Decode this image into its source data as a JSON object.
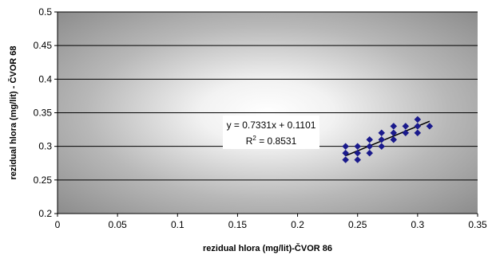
{
  "chart_data": {
    "type": "scatter",
    "title": "",
    "xlabel": "rezidual hlora (mg/lit)-ČVOR 86",
    "ylabel": "rezidual hlora (mg/lit) - ČVOR 68",
    "xlim": [
      0,
      0.35
    ],
    "ylim": [
      0.2,
      0.5
    ],
    "x_ticks": [
      "0",
      "0.05",
      "0.1",
      "0.15",
      "0.2",
      "0.25",
      "0.3",
      "0.35"
    ],
    "y_ticks": [
      "0.2",
      "0.25",
      "0.3",
      "0.35",
      "0.4",
      "0.45",
      "0.5"
    ],
    "grid": "horizontal",
    "background": "radial gradient, white center to dark gray edges",
    "marker": "diamond",
    "marker_color": "#1a1a8c",
    "points": [
      {
        "x": 0.24,
        "y": 0.28
      },
      {
        "x": 0.24,
        "y": 0.29
      },
      {
        "x": 0.24,
        "y": 0.3
      },
      {
        "x": 0.25,
        "y": 0.28
      },
      {
        "x": 0.25,
        "y": 0.29
      },
      {
        "x": 0.25,
        "y": 0.3
      },
      {
        "x": 0.26,
        "y": 0.29
      },
      {
        "x": 0.26,
        "y": 0.3
      },
      {
        "x": 0.26,
        "y": 0.31
      },
      {
        "x": 0.27,
        "y": 0.3
      },
      {
        "x": 0.27,
        "y": 0.31
      },
      {
        "x": 0.27,
        "y": 0.32
      },
      {
        "x": 0.28,
        "y": 0.31
      },
      {
        "x": 0.28,
        "y": 0.32
      },
      {
        "x": 0.28,
        "y": 0.33
      },
      {
        "x": 0.29,
        "y": 0.32
      },
      {
        "x": 0.29,
        "y": 0.33
      },
      {
        "x": 0.3,
        "y": 0.32
      },
      {
        "x": 0.3,
        "y": 0.33
      },
      {
        "x": 0.3,
        "y": 0.34
      },
      {
        "x": 0.31,
        "y": 0.33
      }
    ],
    "trendline": {
      "slope": 0.7331,
      "intercept": 0.1101,
      "x_range": [
        0.24,
        0.31
      ],
      "color": "#000000"
    },
    "annotation": {
      "equation": "y = 0.7331x + 0.1101",
      "r2_prefix": "R",
      "r2_sup": "2",
      "r2_value": " = 0.8531"
    }
  }
}
